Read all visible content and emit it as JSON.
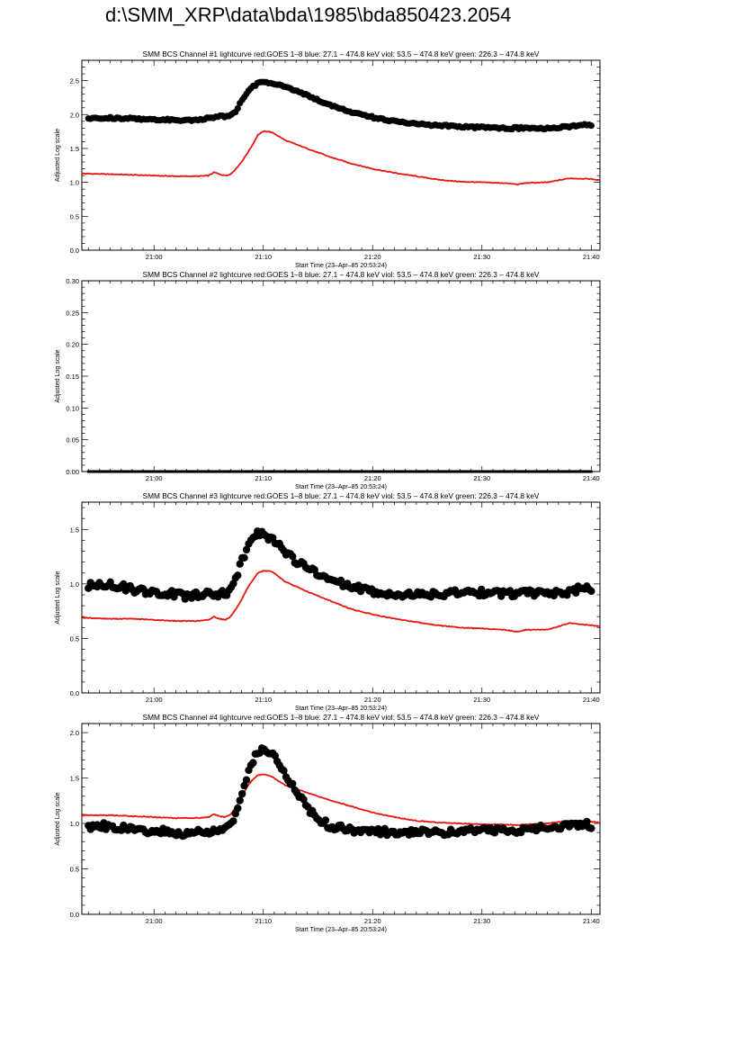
{
  "page_title": "d:\\SMM_XRP\\data\\bda\\1985\\bda850423.2054",
  "colors": {
    "goes": "#e8150f",
    "bcs": "#000000"
  },
  "chart_data": [
    {
      "type": "scatter",
      "title": "SMM BCS Channel #1 lightcurve  red:GOES 1–8  blue: 27.1 – 474.8 keV  viol: 53.5 – 474.8 keV  green: 226.3 – 474.8 keV",
      "xlabel": "Start Time (23–Apr–85 20:53:24)",
      "ylabel": "Adjusted Log scale",
      "xlim": [
        53.4,
        100.8
      ],
      "ylim": [
        0,
        2.8
      ],
      "xticks": [
        {
          "v": 60,
          "label": "21:00"
        },
        {
          "v": 70,
          "label": "21:10"
        },
        {
          "v": 80,
          "label": "21:20"
        },
        {
          "v": 90,
          "label": "21:30"
        },
        {
          "v": 100,
          "label": "21:40"
        }
      ],
      "yticks": [
        {
          "v": 0,
          "label": "0.0"
        },
        {
          "v": 0.5,
          "label": "0.5"
        },
        {
          "v": 1,
          "label": "1.0"
        },
        {
          "v": 1.5,
          "label": "1.5"
        },
        {
          "v": 2,
          "label": "2.0"
        },
        {
          "v": 2.5,
          "label": "2.5"
        }
      ],
      "bcs_marker_size": 3.6,
      "bcs": {
        "x": [
          54,
          56,
          58,
          60,
          62,
          64,
          65,
          66,
          67,
          67.5,
          68,
          68.5,
          69,
          69.5,
          70,
          71,
          72,
          73,
          74,
          76,
          78,
          80,
          82,
          84,
          86,
          88,
          90,
          92,
          94,
          96,
          98,
          99,
          100
        ],
        "y": [
          1.95,
          1.95,
          1.94,
          1.93,
          1.92,
          1.92,
          1.95,
          1.97,
          1.98,
          2.05,
          2.2,
          2.32,
          2.41,
          2.46,
          2.48,
          2.46,
          2.42,
          2.35,
          2.28,
          2.15,
          2.04,
          1.96,
          1.9,
          1.86,
          1.84,
          1.82,
          1.81,
          1.8,
          1.8,
          1.8,
          1.82,
          1.84,
          1.85
        ]
      },
      "goes": {
        "x": [
          53.4,
          56,
          58,
          60,
          62,
          64,
          65,
          65.5,
          66,
          66.5,
          67,
          67.5,
          68,
          68.5,
          69,
          69.5,
          70,
          70.5,
          71,
          72,
          74,
          76,
          78,
          80,
          82,
          84,
          86,
          88,
          90,
          92,
          93.3,
          94,
          96,
          98,
          100,
          100.8
        ],
        "y": [
          1.13,
          1.12,
          1.11,
          1.1,
          1.09,
          1.09,
          1.1,
          1.15,
          1.12,
          1.1,
          1.12,
          1.2,
          1.3,
          1.42,
          1.55,
          1.7,
          1.75,
          1.75,
          1.72,
          1.62,
          1.5,
          1.38,
          1.28,
          1.2,
          1.14,
          1.09,
          1.04,
          1.01,
          1.0,
          0.99,
          0.97,
          0.99,
          1.0,
          1.06,
          1.05,
          1.03
        ]
      }
    },
    {
      "type": "scatter",
      "title": "SMM BCS Channel #2 lightcurve  red:GOES 1–8  blue: 27.1 – 474.8 keV  viol: 53.5 – 474.8 keV  green: 226.3 – 474.8 keV",
      "xlabel": "Start Time (23–Apr–85 20:53:24)",
      "ylabel": "Adjusted Log scale",
      "xlim": [
        53.4,
        100.8
      ],
      "ylim": [
        0,
        0.3
      ],
      "xticks": [
        {
          "v": 60,
          "label": "21:00"
        },
        {
          "v": 70,
          "label": "21:10"
        },
        {
          "v": 80,
          "label": "21:20"
        },
        {
          "v": 90,
          "label": "21:30"
        },
        {
          "v": 100,
          "label": "21:40"
        }
      ],
      "yticks": [
        {
          "v": 0,
          "label": "0.00"
        },
        {
          "v": 0.05,
          "label": "0.05"
        },
        {
          "v": 0.1,
          "label": "0.10"
        },
        {
          "v": 0.15,
          "label": "0.15"
        },
        {
          "v": 0.2,
          "label": "0.20"
        },
        {
          "v": 0.25,
          "label": "0.25"
        },
        {
          "v": 0.3,
          "label": "0.30"
        }
      ],
      "bcs_marker_size": 1.6,
      "bcs": {
        "x": [
          54,
          56,
          58,
          60,
          62,
          64,
          66,
          68,
          70,
          72,
          74,
          76,
          78,
          80,
          82,
          84,
          86,
          88,
          90,
          92,
          94,
          96,
          98,
          100
        ],
        "y": [
          0,
          0,
          0,
          0,
          0,
          0,
          0,
          0,
          0,
          0,
          0,
          0,
          0,
          0,
          0,
          0,
          0,
          0,
          0,
          0,
          0,
          0,
          0,
          0
        ]
      },
      "goes": {
        "x": [],
        "y": []
      }
    },
    {
      "type": "scatter",
      "title": "SMM BCS Channel #3 lightcurve  red:GOES 1–8  blue: 27.1 – 474.8 keV  viol: 53.5 – 474.8 keV  green: 226.3 – 474.8 keV",
      "xlabel": "Start Time (23–Apr–85 20:53:24)",
      "ylabel": "Adjusted Log scale",
      "xlim": [
        53.4,
        100.8
      ],
      "ylim": [
        0,
        1.75
      ],
      "xticks": [
        {
          "v": 60,
          "label": "21:00"
        },
        {
          "v": 70,
          "label": "21:10"
        },
        {
          "v": 80,
          "label": "21:20"
        },
        {
          "v": 90,
          "label": "21:30"
        },
        {
          "v": 100,
          "label": "21:40"
        }
      ],
      "yticks": [
        {
          "v": 0,
          "label": "0.0"
        },
        {
          "v": 0.5,
          "label": "0.5"
        },
        {
          "v": 1,
          "label": "1.0"
        },
        {
          "v": 1.5,
          "label": "1.5"
        }
      ],
      "bcs_marker_size": 4.2,
      "bcs": {
        "x": [
          54,
          56,
          58,
          60,
          62,
          63,
          64,
          65,
          66,
          67,
          67.5,
          68,
          68.5,
          69,
          69.5,
          70,
          70.5,
          71,
          72,
          73,
          74,
          75,
          76,
          78,
          80,
          82,
          84,
          86,
          88,
          90,
          92,
          94,
          96,
          98,
          99,
          100
        ],
        "y": [
          0.98,
          1.0,
          0.95,
          0.92,
          0.91,
          0.88,
          0.9,
          0.92,
          0.9,
          0.93,
          1.05,
          1.2,
          1.32,
          1.42,
          1.47,
          1.45,
          1.42,
          1.4,
          1.3,
          1.2,
          1.15,
          1.08,
          1.04,
          0.98,
          0.92,
          0.91,
          0.9,
          0.9,
          0.92,
          0.92,
          0.91,
          0.92,
          0.9,
          0.93,
          0.96,
          0.95
        ]
      },
      "goes": {
        "x": [
          53.4,
          56,
          58,
          60,
          62,
          64,
          65,
          65.5,
          66,
          66.5,
          67,
          67.5,
          68,
          68.5,
          69,
          69.5,
          70,
          70.5,
          71,
          72,
          74,
          76,
          78,
          80,
          82,
          84,
          86,
          88,
          90,
          92,
          93.3,
          94,
          96,
          98,
          100,
          100.8
        ],
        "y": [
          0.69,
          0.68,
          0.68,
          0.67,
          0.66,
          0.66,
          0.67,
          0.7,
          0.68,
          0.67,
          0.7,
          0.77,
          0.85,
          0.95,
          1.03,
          1.1,
          1.12,
          1.12,
          1.1,
          1.02,
          0.93,
          0.85,
          0.77,
          0.72,
          0.68,
          0.65,
          0.62,
          0.6,
          0.59,
          0.58,
          0.56,
          0.58,
          0.58,
          0.64,
          0.62,
          0.61
        ]
      }
    },
    {
      "type": "scatter",
      "title": "SMM BCS Channel #4 lightcurve  red:GOES 1–8  blue: 27.1 – 474.8 keV  viol: 53.5 – 474.8 keV  green: 226.3 – 474.8 keV",
      "xlabel": "Start Time (23–Apr–85 20:53:24)",
      "ylabel": "Adjusted Log scale",
      "xlim": [
        53.4,
        100.8
      ],
      "ylim": [
        0,
        2.1
      ],
      "xticks": [
        {
          "v": 60,
          "label": "21:00"
        },
        {
          "v": 70,
          "label": "21:10"
        },
        {
          "v": 80,
          "label": "21:20"
        },
        {
          "v": 90,
          "label": "21:30"
        },
        {
          "v": 100,
          "label": "21:40"
        }
      ],
      "yticks": [
        {
          "v": 0,
          "label": "0.0"
        },
        {
          "v": 0.5,
          "label": "0.5"
        },
        {
          "v": 1,
          "label": "1.0"
        },
        {
          "v": 1.5,
          "label": "1.5"
        },
        {
          "v": 2,
          "label": "2.0"
        }
      ],
      "bcs_marker_size": 4.2,
      "bcs": {
        "x": [
          54,
          56,
          58,
          60,
          62,
          63,
          64,
          65,
          66,
          67,
          67.5,
          68,
          68.5,
          69,
          69.5,
          70,
          70.5,
          71,
          72,
          73,
          74,
          75,
          76,
          78,
          80,
          82,
          84,
          86,
          88,
          90,
          92,
          94,
          96,
          98,
          99,
          100
        ],
        "y": [
          0.97,
          0.97,
          0.93,
          0.92,
          0.9,
          0.88,
          0.9,
          0.88,
          0.93,
          0.98,
          1.1,
          1.32,
          1.52,
          1.68,
          1.8,
          1.82,
          1.8,
          1.75,
          1.55,
          1.35,
          1.18,
          1.05,
          0.98,
          0.93,
          0.92,
          0.9,
          0.9,
          0.9,
          0.92,
          0.92,
          0.92,
          0.93,
          0.95,
          0.98,
          1.0,
          0.98
        ]
      },
      "goes": {
        "x": [
          53.4,
          56,
          58,
          60,
          62,
          64,
          65,
          65.5,
          66,
          66.5,
          67,
          67.5,
          68,
          68.5,
          69,
          69.5,
          70,
          70.5,
          71,
          72,
          74,
          76,
          78,
          80,
          82,
          84,
          86,
          88,
          90,
          92,
          93.3,
          94,
          96,
          98,
          100,
          100.8
        ],
        "y": [
          1.09,
          1.09,
          1.08,
          1.07,
          1.06,
          1.06,
          1.07,
          1.1,
          1.08,
          1.07,
          1.1,
          1.18,
          1.28,
          1.4,
          1.48,
          1.53,
          1.54,
          1.53,
          1.5,
          1.42,
          1.34,
          1.26,
          1.19,
          1.12,
          1.07,
          1.03,
          1.01,
          1.0,
          0.99,
          0.99,
          0.98,
          0.99,
          1.0,
          1.03,
          1.02,
          1.01
        ]
      }
    }
  ]
}
